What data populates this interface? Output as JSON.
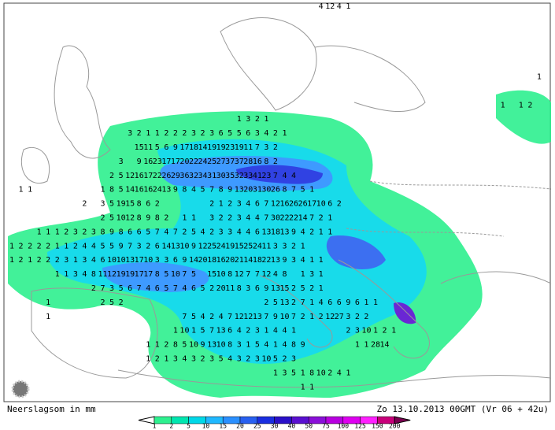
{
  "header": {
    "left": "Neerslagsom in mm",
    "right": "Zo 13.10.2013 00GMT (Vr 06 + 42u)"
  },
  "grid_values": [
    [
      null,
      null,
      null,
      null,
      null,
      null,
      null,
      null,
      null,
      null,
      null,
      null,
      null,
      null,
      null,
      null,
      null,
      null,
      null,
      null,
      null,
      null,
      null,
      null,
      null,
      null,
      null,
      null,
      null,
      null,
      null,
      null,
      null,
      null,
      4,
      12,
      4,
      1
    ],
    [],
    [],
    [],
    [],
    [
      null,
      null,
      null,
      null,
      null,
      null,
      null,
      null,
      null,
      null,
      null,
      null,
      null,
      null,
      null,
      null,
      null,
      null,
      null,
      null,
      null,
      null,
      null,
      null,
      null,
      null,
      null,
      null,
      null,
      null,
      null,
      null,
      null,
      null,
      null,
      null,
      null,
      null,
      null,
      null,
      null,
      null,
      null,
      null,
      null,
      null,
      null,
      null,
      null,
      null,
      null,
      null,
      null,
      null,
      null,
      null,
      null,
      null,
      1
    ],
    [],
    [
      null,
      null,
      null,
      null,
      null,
      null,
      null,
      null,
      null,
      null,
      null,
      null,
      null,
      null,
      null,
      null,
      null,
      null,
      null,
      null,
      null,
      null,
      null,
      null,
      null,
      null,
      null,
      null,
      null,
      null,
      null,
      null,
      null,
      null,
      null,
      null,
      null,
      null,
      null,
      null,
      null,
      null,
      null,
      null,
      null,
      null,
      null,
      null,
      null,
      null,
      null,
      null,
      null,
      null,
      1,
      null,
      1,
      2
    ],
    [
      null,
      null,
      null,
      null,
      null,
      null,
      null,
      null,
      null,
      null,
      null,
      null,
      null,
      null,
      null,
      null,
      null,
      null,
      null,
      null,
      null,
      null,
      null,
      null,
      null,
      1,
      3,
      2,
      1
    ],
    [
      null,
      null,
      null,
      null,
      null,
      null,
      null,
      null,
      null,
      null,
      null,
      null,
      null,
      3,
      2,
      1,
      1,
      2,
      2,
      2,
      3,
      2,
      3,
      6,
      5,
      5,
      6,
      3,
      4,
      2,
      1
    ],
    [
      null,
      null,
      null,
      null,
      null,
      null,
      null,
      null,
      null,
      null,
      null,
      null,
      null,
      null,
      15,
      11,
      5,
      6,
      9,
      17,
      18,
      14,
      19,
      19,
      23,
      19,
      11,
      7,
      3,
      2
    ],
    [
      null,
      null,
      null,
      null,
      null,
      null,
      null,
      null,
      null,
      null,
      null,
      null,
      3,
      null,
      9,
      16,
      23,
      17,
      17,
      20,
      22,
      24,
      25,
      27,
      37,
      37,
      28,
      16,
      8,
      2
    ],
    [
      null,
      null,
      null,
      null,
      null,
      null,
      null,
      null,
      null,
      null,
      null,
      2,
      5,
      12,
      16,
      17,
      22,
      26,
      29,
      36,
      32,
      34,
      31,
      30,
      35,
      32,
      33,
      41,
      23,
      7,
      4,
      4
    ],
    [
      null,
      1,
      1,
      null,
      null,
      null,
      null,
      null,
      null,
      null,
      1,
      8,
      5,
      14,
      16,
      16,
      24,
      13,
      9,
      8,
      4,
      5,
      7,
      8,
      9,
      13,
      20,
      31,
      30,
      26,
      8,
      7,
      5,
      1
    ],
    [
      null,
      null,
      null,
      null,
      null,
      null,
      null,
      null,
      2,
      null,
      3,
      5,
      19,
      15,
      8,
      6,
      2,
      null,
      null,
      null,
      null,
      null,
      2,
      1,
      2,
      3,
      4,
      6,
      7,
      12,
      16,
      26,
      26,
      17,
      10,
      6,
      2
    ],
    [
      null,
      null,
      null,
      null,
      null,
      null,
      null,
      null,
      null,
      null,
      2,
      5,
      10,
      12,
      8,
      9,
      8,
      2,
      null,
      1,
      1,
      null,
      3,
      2,
      2,
      3,
      4,
      4,
      7,
      30,
      22,
      22,
      14,
      7,
      2,
      1
    ],
    [
      null,
      null,
      null,
      1,
      1,
      1,
      2,
      3,
      2,
      3,
      8,
      9,
      8,
      6,
      6,
      5,
      7,
      4,
      7,
      2,
      5,
      4,
      2,
      3,
      3,
      4,
      4,
      6,
      13,
      18,
      13,
      9,
      4,
      2,
      1,
      1
    ],
    [
      1,
      2,
      2,
      2,
      2,
      1,
      1,
      2,
      4,
      4,
      5,
      5,
      9,
      7,
      3,
      2,
      6,
      14,
      13,
      10,
      9,
      12,
      25,
      24,
      19,
      15,
      25,
      24,
      11,
      3,
      3,
      2,
      1
    ],
    [
      1,
      2,
      1,
      2,
      2,
      2,
      3,
      1,
      3,
      4,
      6,
      10,
      10,
      13,
      17,
      10,
      3,
      3,
      6,
      9,
      14,
      20,
      18,
      16,
      20,
      21,
      14,
      18,
      22,
      13,
      9,
      3,
      4,
      1,
      1
    ],
    [
      null,
      null,
      null,
      null,
      null,
      1,
      1,
      3,
      4,
      8,
      11,
      12,
      19,
      19,
      17,
      17,
      8,
      5,
      10,
      7,
      5,
      null,
      15,
      10,
      8,
      12,
      7,
      7,
      12,
      4,
      8,
      null,
      1,
      3,
      1
    ],
    [
      null,
      null,
      null,
      null,
      null,
      null,
      null,
      null,
      null,
      2,
      7,
      3,
      5,
      6,
      7,
      4,
      6,
      5,
      7,
      4,
      6,
      5,
      2,
      20,
      11,
      8,
      3,
      6,
      9,
      13,
      15,
      2,
      5,
      2,
      1
    ],
    [
      null,
      null,
      null,
      null,
      1,
      null,
      null,
      null,
      null,
      null,
      2,
      5,
      2,
      null,
      null,
      null,
      null,
      null,
      null,
      null,
      null,
      null,
      null,
      null,
      null,
      null,
      null,
      null,
      2,
      5,
      13,
      2,
      7,
      1,
      4,
      6,
      6,
      9,
      6,
      1,
      1
    ],
    [
      null,
      null,
      null,
      null,
      1,
      null,
      null,
      null,
      null,
      null,
      null,
      null,
      null,
      null,
      null,
      null,
      null,
      null,
      null,
      7,
      5,
      4,
      2,
      4,
      7,
      12,
      12,
      13,
      7,
      9,
      10,
      7,
      2,
      1,
      2,
      12,
      27,
      3,
      2,
      2
    ],
    [
      null,
      null,
      null,
      null,
      null,
      null,
      null,
      null,
      null,
      null,
      null,
      null,
      null,
      null,
      null,
      null,
      null,
      null,
      1,
      10,
      1,
      5,
      7,
      13,
      6,
      4,
      2,
      3,
      1,
      4,
      4,
      1,
      null,
      null,
      null,
      null,
      null,
      2,
      3,
      10,
      1,
      2,
      1
    ],
    [
      null,
      null,
      null,
      null,
      null,
      null,
      null,
      null,
      null,
      null,
      null,
      null,
      null,
      null,
      null,
      1,
      1,
      2,
      8,
      5,
      10,
      9,
      13,
      10,
      8,
      3,
      1,
      5,
      4,
      1,
      4,
      8,
      9,
      null,
      null,
      null,
      null,
      null,
      1,
      1,
      28,
      14
    ],
    [
      null,
      null,
      null,
      null,
      null,
      null,
      null,
      null,
      null,
      null,
      null,
      null,
      null,
      null,
      null,
      1,
      2,
      1,
      3,
      4,
      3,
      2,
      3,
      5,
      4,
      3,
      2,
      3,
      10,
      5,
      2,
      3
    ],
    [
      null,
      null,
      null,
      null,
      null,
      null,
      null,
      null,
      null,
      null,
      null,
      null,
      null,
      null,
      null,
      null,
      null,
      null,
      null,
      null,
      null,
      null,
      null,
      null,
      null,
      null,
      null,
      null,
      null,
      1,
      3,
      5,
      1,
      8,
      10,
      2,
      4,
      1
    ],
    [
      null,
      null,
      null,
      null,
      null,
      null,
      null,
      null,
      null,
      null,
      null,
      null,
      null,
      null,
      null,
      null,
      null,
      null,
      null,
      null,
      null,
      null,
      null,
      null,
      null,
      null,
      null,
      null,
      null,
      null,
      null,
      null,
      1,
      1
    ]
  ],
  "legend": {
    "labels": [
      "1",
      "2",
      "5",
      "10",
      "15",
      "20",
      "25",
      "30",
      "40",
      "50",
      "75",
      "100",
      "125",
      "150",
      "200"
    ],
    "colors": [
      "#2ef08f",
      "#00e6b0",
      "#00d8e8",
      "#20b8ff",
      "#2a90ff",
      "#2860f0",
      "#1a2ee0",
      "#2a10c8",
      "#5a10d0",
      "#8a10d8",
      "#b800e0",
      "#de00f0",
      "#ff20ff",
      "#c8007a"
    ]
  }
}
